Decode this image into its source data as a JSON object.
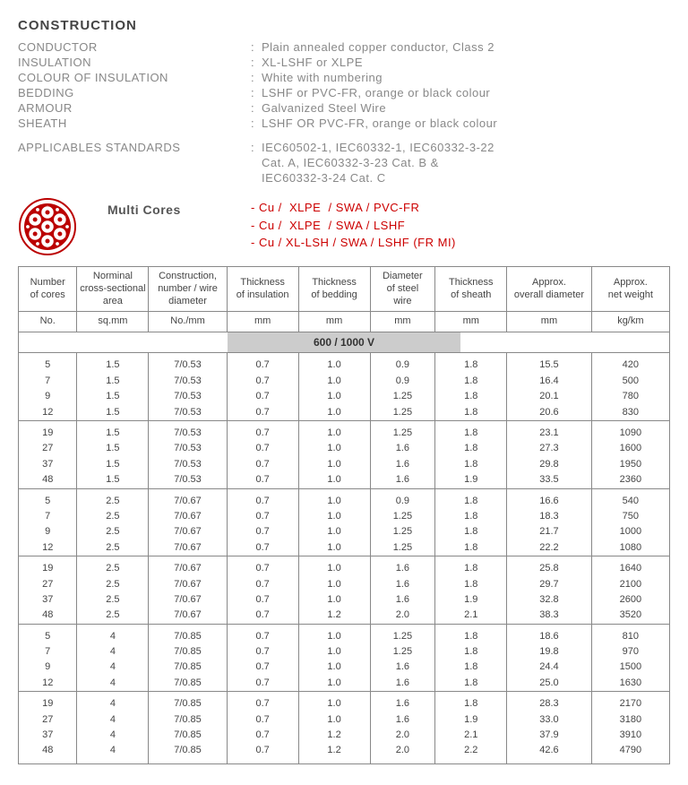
{
  "construction": {
    "title": "CONSTRUCTION",
    "rows": [
      {
        "label": "CONDUCTOR",
        "value": "Plain annealed copper conductor, Class 2"
      },
      {
        "label": "INSULATION",
        "value": "XL-LSHF or XLPE"
      },
      {
        "label": "COLOUR OF INSULATION",
        "value": "White with numbering"
      },
      {
        "label": "BEDDING",
        "value": "LSHF or PVC-FR, orange or black colour"
      },
      {
        "label": "ARMOUR",
        "value": "Galvanized Steel Wire"
      },
      {
        "label": "SHEATH",
        "value": "LSHF OR PVC-FR, orange or black colour"
      }
    ],
    "standards": {
      "label": "APPLICABLES STANDARDS",
      "lines": [
        "IEC60502-1, IEC60332-1, IEC60332-3-22",
        "Cat. A, IEC60332-3-23 Cat. B &",
        "IEC60332-3-24 Cat. C"
      ]
    }
  },
  "multi": {
    "label": "Multi Cores",
    "items": [
      "- Cu /  XLPE  / SWA / PVC-FR",
      "- Cu /  XLPE  / SWA / LSHF",
      "- Cu / XL-LSH / SWA / LSHF (FR MI)"
    ]
  },
  "icon": {
    "outer_stroke": "#b00",
    "inner_fill": "#b00",
    "conductor_fill": "#fff",
    "conductor_stroke": "#b00",
    "dot_fill": "#b00"
  },
  "table": {
    "headers": [
      "Number of cores",
      "Norminal cross-sectional area",
      "Construction, number / wire diameter",
      "Thickness of insulation",
      "Thickness of bedding",
      "Diameter of steel wire",
      "Thickness of sheath",
      "Approx. overall diameter",
      "Approx. net weight"
    ],
    "units": [
      "No.",
      "sq.mm",
      "No./mm",
      "mm",
      "mm",
      "mm",
      "mm",
      "mm",
      "kg/km"
    ],
    "voltage": "600 / 1000 V",
    "col_widths": [
      "9%",
      "11%",
      "12%",
      "11%",
      "11%",
      "10%",
      "11%",
      "13%",
      "12%"
    ],
    "groups": [
      [
        [
          "5",
          "1.5",
          "7/0.53",
          "0.7",
          "1.0",
          "0.9",
          "1.8",
          "15.5",
          "420"
        ],
        [
          "7",
          "1.5",
          "7/0.53",
          "0.7",
          "1.0",
          "0.9",
          "1.8",
          "16.4",
          "500"
        ],
        [
          "9",
          "1.5",
          "7/0.53",
          "0.7",
          "1.0",
          "1.25",
          "1.8",
          "20.1",
          "780"
        ],
        [
          "12",
          "1.5",
          "7/0.53",
          "0.7",
          "1.0",
          "1.25",
          "1.8",
          "20.6",
          "830"
        ]
      ],
      [
        [
          "19",
          "1.5",
          "7/0.53",
          "0.7",
          "1.0",
          "1.25",
          "1.8",
          "23.1",
          "1090"
        ],
        [
          "27",
          "1.5",
          "7/0.53",
          "0.7",
          "1.0",
          "1.6",
          "1.8",
          "27.3",
          "1600"
        ],
        [
          "37",
          "1.5",
          "7/0.53",
          "0.7",
          "1.0",
          "1.6",
          "1.8",
          "29.8",
          "1950"
        ],
        [
          "48",
          "1.5",
          "7/0.53",
          "0.7",
          "1.0",
          "1.6",
          "1.9",
          "33.5",
          "2360"
        ]
      ],
      [
        [
          "5",
          "2.5",
          "7/0.67",
          "0.7",
          "1.0",
          "0.9",
          "1.8",
          "16.6",
          "540"
        ],
        [
          "7",
          "2.5",
          "7/0.67",
          "0.7",
          "1.0",
          "1.25",
          "1.8",
          "18.3",
          "750"
        ],
        [
          "9",
          "2.5",
          "7/0.67",
          "0.7",
          "1.0",
          "1.25",
          "1.8",
          "21.7",
          "1000"
        ],
        [
          "12",
          "2.5",
          "7/0.67",
          "0.7",
          "1.0",
          "1.25",
          "1.8",
          "22.2",
          "1080"
        ]
      ],
      [
        [
          "19",
          "2.5",
          "7/0.67",
          "0.7",
          "1.0",
          "1.6",
          "1.8",
          "25.8",
          "1640"
        ],
        [
          "27",
          "2.5",
          "7/0.67",
          "0.7",
          "1.0",
          "1.6",
          "1.8",
          "29.7",
          "2100"
        ],
        [
          "37",
          "2.5",
          "7/0.67",
          "0.7",
          "1.0",
          "1.6",
          "1.9",
          "32.8",
          "2600"
        ],
        [
          "48",
          "2.5",
          "7/0.67",
          "0.7",
          "1.2",
          "2.0",
          "2.1",
          "38.3",
          "3520"
        ]
      ],
      [
        [
          "5",
          "4",
          "7/0.85",
          "0.7",
          "1.0",
          "1.25",
          "1.8",
          "18.6",
          "810"
        ],
        [
          "7",
          "4",
          "7/0.85",
          "0.7",
          "1.0",
          "1.25",
          "1.8",
          "19.8",
          "970"
        ],
        [
          "9",
          "4",
          "7/0.85",
          "0.7",
          "1.0",
          "1.6",
          "1.8",
          "24.4",
          "1500"
        ],
        [
          "12",
          "4",
          "7/0.85",
          "0.7",
          "1.0",
          "1.6",
          "1.8",
          "25.0",
          "1630"
        ]
      ],
      [
        [
          "19",
          "4",
          "7/0.85",
          "0.7",
          "1.0",
          "1.6",
          "1.8",
          "28.3",
          "2170"
        ],
        [
          "27",
          "4",
          "7/0.85",
          "0.7",
          "1.0",
          "1.6",
          "1.9",
          "33.0",
          "3180"
        ],
        [
          "37",
          "4",
          "7/0.85",
          "0.7",
          "1.2",
          "2.0",
          "2.1",
          "37.9",
          "3910"
        ],
        [
          "48",
          "4",
          "7/0.85",
          "0.7",
          "1.2",
          "2.0",
          "2.2",
          "42.6",
          "4790"
        ]
      ]
    ]
  }
}
